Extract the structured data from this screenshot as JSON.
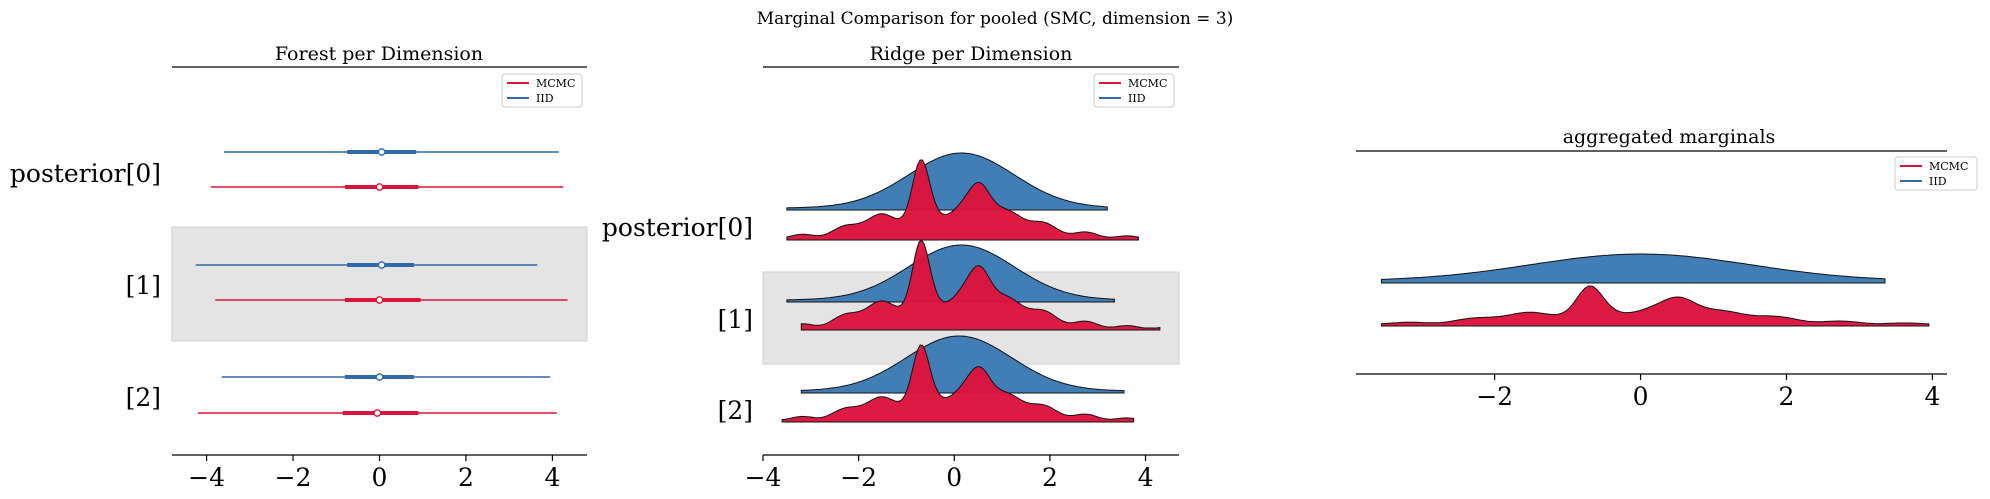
{
  "figure": {
    "title": "Marginal Comparison for pooled (SMC, dimension = 3)"
  },
  "colors": {
    "mcmc": "#dc143c",
    "iid": "#2f6aaa",
    "band": "#e4e4e4",
    "ridge_iid": "#3c7ab4",
    "ridge_mcmc": "#dc143c"
  },
  "chart_data": [
    {
      "type": "forest",
      "title": "Forest per Dimension",
      "xlim": [
        -4.8,
        4.8
      ],
      "xticks": [
        -4,
        -2,
        0,
        2,
        4
      ],
      "xtick_labels": [
        "−4",
        "−2",
        "0",
        "2",
        "4"
      ],
      "y_labels": [
        "posterior[0]",
        "[1]",
        "[2]"
      ],
      "legend": [
        "MCMC",
        "IID"
      ],
      "series": [
        {
          "name": "IID",
          "rows": [
            {
              "hdi94": [
                -3.6,
                4.15
              ],
              "hdi50": [
                -0.75,
                0.85
              ],
              "mean": 0.05
            },
            {
              "hdi94": [
                -4.25,
                3.65
              ],
              "hdi50": [
                -0.75,
                0.8
              ],
              "mean": 0.05
            },
            {
              "hdi94": [
                -3.65,
                3.95
              ],
              "hdi50": [
                -0.8,
                0.8
              ],
              "mean": 0.0
            }
          ]
        },
        {
          "name": "MCMC",
          "rows": [
            {
              "hdi94": [
                -3.9,
                4.25
              ],
              "hdi50": [
                -0.8,
                0.9
              ],
              "mean": 0.0
            },
            {
              "hdi94": [
                -3.8,
                4.35
              ],
              "hdi50": [
                -0.8,
                0.95
              ],
              "mean": 0.0
            },
            {
              "hdi94": [
                -4.2,
                4.1
              ],
              "hdi50": [
                -0.85,
                0.9
              ],
              "mean": -0.05
            }
          ]
        }
      ]
    },
    {
      "type": "ridge",
      "title": "Ridge per Dimension",
      "xlim": [
        -4.0,
        4.7
      ],
      "xticks": [
        -4,
        -2,
        0,
        2,
        4
      ],
      "xtick_labels": [
        "−4",
        "−2",
        "0",
        "2",
        "4"
      ],
      "y_labels": [
        "posterior[0]",
        "[1]",
        "[2]"
      ],
      "legend": [
        "MCMC",
        "IID"
      ],
      "ridges": [
        {
          "name": "IID",
          "range": [
            -3.5,
            3.2
          ],
          "peak": 0.15
        },
        {
          "name": "MCMC",
          "range": [
            -3.5,
            3.85
          ]
        },
        {
          "name": "IID",
          "range": [
            -3.5,
            3.35
          ],
          "peak": 0.15
        },
        {
          "name": "MCMC",
          "range": [
            -3.2,
            4.3
          ]
        },
        {
          "name": "IID",
          "range": [
            -3.2,
            3.55
          ],
          "peak": 0.1
        },
        {
          "name": "MCMC",
          "range": [
            -3.6,
            3.75
          ]
        }
      ]
    },
    {
      "type": "ridge",
      "title": "aggregated marginals",
      "xlim": [
        -3.9,
        4.2
      ],
      "xticks": [
        -2,
        0,
        2,
        4
      ],
      "xtick_labels": [
        "−2",
        "0",
        "2",
        "4"
      ],
      "legend": [
        "MCMC",
        "IID"
      ],
      "ridges": [
        {
          "name": "IID",
          "range": [
            -3.55,
            3.35
          ],
          "peak": 0.0
        },
        {
          "name": "MCMC",
          "range": [
            -3.55,
            3.95
          ]
        }
      ]
    }
  ]
}
